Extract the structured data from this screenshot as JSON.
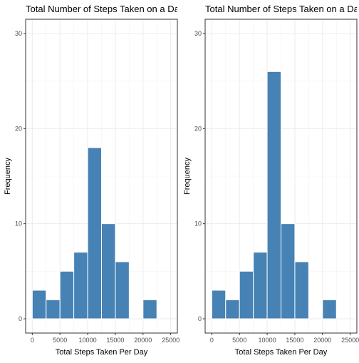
{
  "chart_data": [
    {
      "type": "bar",
      "title": "Total Number of Steps Taken on a Day",
      "xlabel": "Total Steps Taken Per Day",
      "ylabel": "Frequency",
      "xlim": [
        -1200,
        26200
      ],
      "ylim": [
        -1.5,
        31.5
      ],
      "x_ticks": [
        0,
        5000,
        10000,
        15000,
        20000,
        25000
      ],
      "y_ticks": [
        0,
        10,
        20,
        30
      ],
      "bin_width": 2500,
      "bins": [
        {
          "start": 0,
          "end": 2500,
          "count": 3
        },
        {
          "start": 2500,
          "end": 5000,
          "count": 2
        },
        {
          "start": 5000,
          "end": 7500,
          "count": 5
        },
        {
          "start": 7500,
          "end": 10000,
          "count": 7
        },
        {
          "start": 10000,
          "end": 12500,
          "count": 18
        },
        {
          "start": 12500,
          "end": 15000,
          "count": 10
        },
        {
          "start": 15000,
          "end": 17500,
          "count": 6
        },
        {
          "start": 17500,
          "end": 20000,
          "count": 0
        },
        {
          "start": 20000,
          "end": 22500,
          "count": 2
        }
      ],
      "bar_color": "#4682B4",
      "grid": true
    },
    {
      "type": "bar",
      "title": "Total Number of Steps Taken on a Day",
      "xlabel": "Total Steps Taken Per Day",
      "ylabel": "Frequency",
      "xlim": [
        -1200,
        26200
      ],
      "ylim": [
        -1.5,
        31.5
      ],
      "x_ticks": [
        0,
        5000,
        10000,
        15000,
        20000,
        25000
      ],
      "y_ticks": [
        0,
        10,
        20,
        30
      ],
      "bin_width": 2500,
      "bins": [
        {
          "start": 0,
          "end": 2500,
          "count": 3
        },
        {
          "start": 2500,
          "end": 5000,
          "count": 2
        },
        {
          "start": 5000,
          "end": 7500,
          "count": 5
        },
        {
          "start": 7500,
          "end": 10000,
          "count": 7
        },
        {
          "start": 10000,
          "end": 12500,
          "count": 26
        },
        {
          "start": 12500,
          "end": 15000,
          "count": 10
        },
        {
          "start": 15000,
          "end": 17500,
          "count": 6
        },
        {
          "start": 17500,
          "end": 20000,
          "count": 0
        },
        {
          "start": 20000,
          "end": 22500,
          "count": 2
        }
      ],
      "bar_color": "#4682B4",
      "grid": true
    }
  ]
}
